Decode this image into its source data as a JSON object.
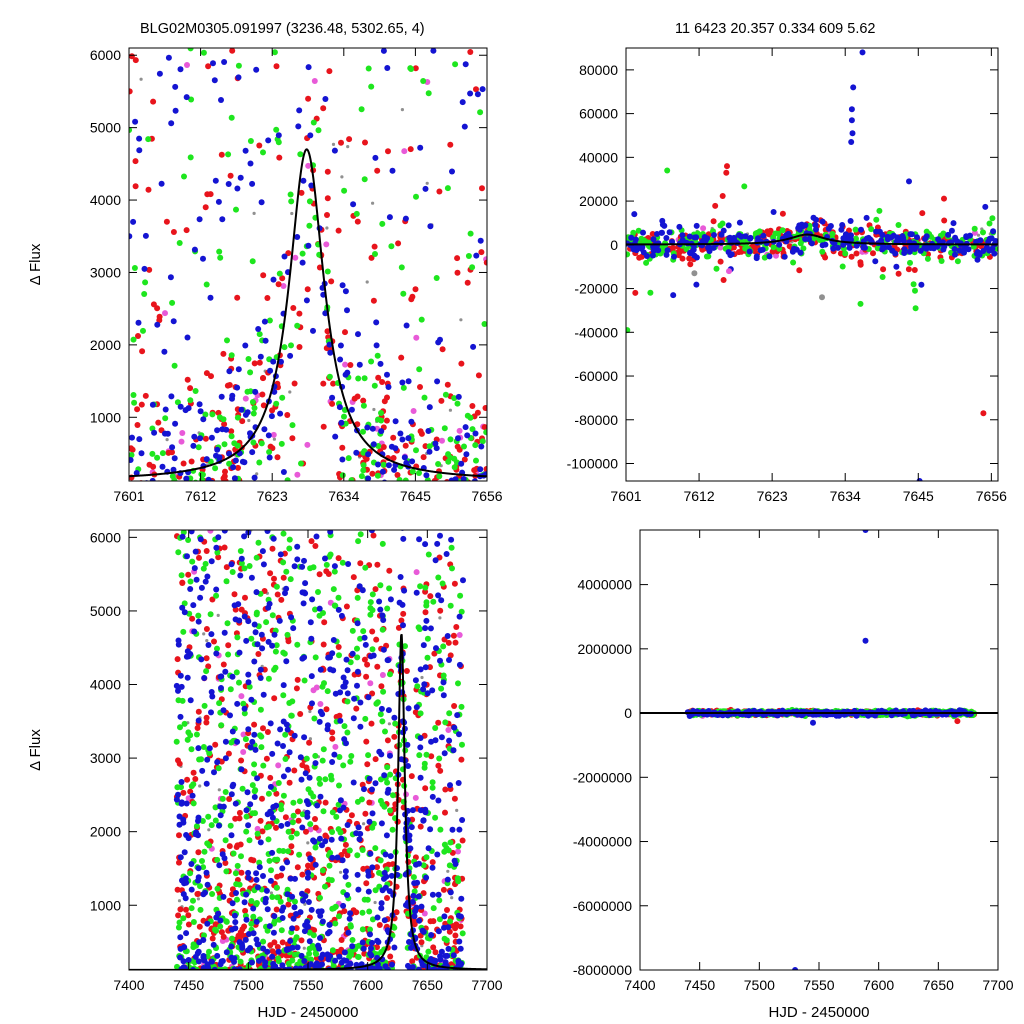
{
  "header": {
    "left": "BLG02M0305.091997 (3236.48, 5302.65,    4)",
    "right": "11   6423   20.357   0.334   609   5.62"
  },
  "colors": {
    "red": "#e8141c",
    "green": "#1ee61e",
    "blue": "#1414d2",
    "magenta": "#e85ad8",
    "gray": "#909090",
    "model": "#000000"
  },
  "chart_data": [
    {
      "id": "top-left",
      "type": "scatter",
      "title": "",
      "xlabel": "",
      "ylabel": "Δ Flux",
      "xlim": [
        7601,
        7656
      ],
      "ylim": [
        120,
        6100
      ],
      "xticks": [
        7601,
        7612,
        7623,
        7634,
        7645,
        7656
      ],
      "yticks": [
        1000,
        2000,
        3000,
        4000,
        5000,
        6000
      ],
      "series": [],
      "model": {
        "t0": 7628.3,
        "peak": 4700,
        "width": 3.3,
        "baseline": 120
      },
      "scatter_spec": {
        "density": "peak-concentrated",
        "counts": {
          "red": 320,
          "green": 260,
          "blue": 320,
          "magenta": 45,
          "gray": 40
        }
      }
    },
    {
      "id": "top-right",
      "type": "scatter",
      "title": "",
      "xlabel": "",
      "ylabel": "",
      "xlim": [
        7601,
        7657
      ],
      "ylim": [
        -108000,
        90000
      ],
      "xticks": [
        7601,
        7612,
        7623,
        7634,
        7645,
        7656
      ],
      "yticks": [
        -100000,
        -80000,
        -60000,
        -40000,
        -20000,
        0,
        20000,
        40000,
        60000,
        80000
      ],
      "series": [],
      "model": {
        "t0": 7628.3,
        "peak": 4700,
        "width": 3.3,
        "baseline": 120
      },
      "outliers": [
        {
          "x": 7636.6,
          "y": 88000,
          "color": "blue"
        },
        {
          "x": 7635.2,
          "y": 72000,
          "color": "blue"
        },
        {
          "x": 7635.0,
          "y": 62000,
          "color": "blue"
        },
        {
          "x": 7635.0,
          "y": 57000,
          "color": "blue"
        },
        {
          "x": 7635.1,
          "y": 51000,
          "color": "blue"
        },
        {
          "x": 7634.9,
          "y": 47000,
          "color": "blue"
        },
        {
          "x": 7645.2,
          "y": -108000,
          "color": "blue"
        },
        {
          "x": 7654.8,
          "y": -77000,
          "color": "red"
        },
        {
          "x": 7602.4,
          "y": -22000,
          "color": "red"
        },
        {
          "x": 7601.2,
          "y": -39000,
          "color": "green"
        },
        {
          "x": 7608.1,
          "y": -23000,
          "color": "blue"
        },
        {
          "x": 7644.3,
          "y": -18000,
          "color": "green"
        },
        {
          "x": 7644.5,
          "y": -21000,
          "color": "green"
        },
        {
          "x": 7644.6,
          "y": -29000,
          "color": "green"
        },
        {
          "x": 7616.2,
          "y": 36000,
          "color": "red"
        },
        {
          "x": 7616.1,
          "y": 33000,
          "color": "red"
        },
        {
          "x": 7643.6,
          "y": 29000,
          "color": "blue"
        },
        {
          "x": 7607.2,
          "y": 34000,
          "color": "green"
        },
        {
          "x": 7636.3,
          "y": -27000,
          "color": "green"
        },
        {
          "x": 7630.5,
          "y": -24000,
          "color": "gray"
        },
        {
          "x": 7611.3,
          "y": -13000,
          "color": "gray"
        },
        {
          "x": 7616.5,
          "y": -12000,
          "color": "magenta"
        }
      ],
      "scatter_spec": {
        "density": "band",
        "counts": {
          "red": 260,
          "green": 220,
          "blue": 260,
          "magenta": 30,
          "gray": 20
        }
      }
    },
    {
      "id": "bottom-left",
      "type": "scatter",
      "title": "",
      "xlabel": "HJD - 2450000",
      "ylabel": "Δ Flux",
      "xlim": [
        7400,
        7700
      ],
      "ylim": [
        120,
        6100
      ],
      "xticks": [
        7400,
        7450,
        7500,
        7550,
        7600,
        7650,
        7700
      ],
      "yticks": [
        1000,
        2000,
        3000,
        4000,
        5000,
        6000
      ],
      "series": [],
      "model": {
        "t0": 7628.3,
        "peak": 4700,
        "width": 3.3,
        "baseline": 120
      },
      "scatter_spec": {
        "density": "bottom-concentrated",
        "range": [
          7440,
          7680
        ],
        "counts": {
          "red": 650,
          "green": 700,
          "blue": 750,
          "magenta": 60,
          "gray": 60
        }
      }
    },
    {
      "id": "bottom-right",
      "type": "scatter",
      "title": "",
      "xlabel": "HJD - 2450000",
      "ylabel": "",
      "xlim": [
        7400,
        7700
      ],
      "ylim": [
        -8000000,
        5700000
      ],
      "xticks": [
        7400,
        7450,
        7500,
        7550,
        7600,
        7650,
        7700
      ],
      "yticks": [
        -8000000,
        -6000000,
        -4000000,
        -2000000,
        0,
        2000000,
        4000000
      ],
      "series": [],
      "model": {
        "t0": 7628.3,
        "peak": 4700,
        "width": 3.3,
        "baseline": 120
      },
      "outliers": [
        {
          "x": 7589,
          "y": 5700000,
          "color": "blue"
        },
        {
          "x": 7589,
          "y": 2250000,
          "color": "blue"
        },
        {
          "x": 7530,
          "y": -8000000,
          "color": "blue"
        },
        {
          "x": 7545,
          "y": -300000,
          "color": "blue"
        },
        {
          "x": 7666,
          "y": -250000,
          "color": "red"
        }
      ],
      "scatter_spec": {
        "density": "flat",
        "range": [
          7440,
          7680
        ],
        "counts": {
          "red": 250,
          "green": 500,
          "blue": 300,
          "magenta": 30,
          "gray": 20
        }
      }
    }
  ]
}
